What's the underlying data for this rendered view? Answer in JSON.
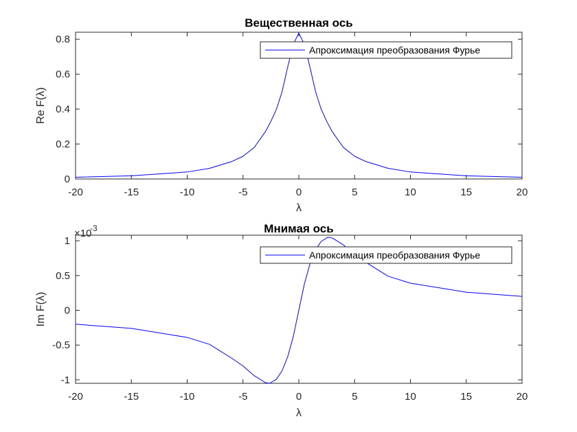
{
  "chart_data": [
    {
      "type": "line",
      "title": "Вещественная ось",
      "xlabel": "λ",
      "ylabel": "Re F(λ)",
      "xlim": [
        -20,
        20
      ],
      "ylim": [
        0,
        0.84
      ],
      "xticks": [
        "-20",
        "-15",
        "-10",
        "-5",
        "0",
        "5",
        "10",
        "15",
        "20"
      ],
      "yticks": [
        "0",
        "0.2",
        "0.4",
        "0.6",
        "0.8"
      ],
      "legend": "Апроксимация преобразования Фурье",
      "legend_position": "top-right",
      "line_color": "#0000ff",
      "series": [
        {
          "name": "Апроксимация преобразования Фурье",
          "x": [
            -20,
            -15,
            -10,
            -8,
            -6,
            -5,
            -4,
            -3,
            -2.5,
            -2,
            -1.5,
            -1,
            -0.5,
            0,
            0.5,
            1,
            1.5,
            2,
            2.5,
            3,
            4,
            5,
            6,
            8,
            10,
            15,
            20
          ],
          "y": [
            0.01,
            0.018,
            0.04,
            0.061,
            0.1,
            0.13,
            0.18,
            0.27,
            0.33,
            0.4,
            0.5,
            0.64,
            0.77,
            0.835,
            0.77,
            0.64,
            0.5,
            0.4,
            0.33,
            0.27,
            0.18,
            0.13,
            0.1,
            0.061,
            0.04,
            0.018,
            0.01
          ]
        }
      ]
    },
    {
      "type": "line",
      "title": "Мнимая ось",
      "xlabel": "λ",
      "ylabel": "Im F(λ)",
      "xlim": [
        -20,
        20
      ],
      "ylim": [
        -1.05,
        1.08
      ],
      "y_multiplier_label": "×10",
      "y_multiplier_exp": "-3",
      "xticks": [
        "-20",
        "-15",
        "-10",
        "-5",
        "0",
        "5",
        "10",
        "15",
        "20"
      ],
      "yticks": [
        "-1",
        "-0.5",
        "0",
        "0.5",
        "1"
      ],
      "legend": "Апроксимация преобразования Фурье",
      "legend_position": "top-right",
      "line_color": "#0000ff",
      "series": [
        {
          "name": "Апроксимация преобразования Фурье",
          "x": [
            -20,
            -15,
            -10,
            -8,
            -6,
            -5,
            -4,
            -3,
            -2.6,
            -2,
            -1.5,
            -1,
            -0.5,
            0,
            0.5,
            1,
            1.5,
            2,
            2.6,
            3,
            4,
            5,
            6,
            8,
            10,
            15,
            20
          ],
          "y": [
            -0.2,
            -0.26,
            -0.39,
            -0.49,
            -0.69,
            -0.8,
            -0.94,
            -1.04,
            -1.05,
            -0.99,
            -0.87,
            -0.67,
            -0.38,
            0,
            0.38,
            0.67,
            0.87,
            0.99,
            1.05,
            1.04,
            0.94,
            0.8,
            0.69,
            0.49,
            0.39,
            0.26,
            0.2
          ]
        }
      ]
    }
  ]
}
